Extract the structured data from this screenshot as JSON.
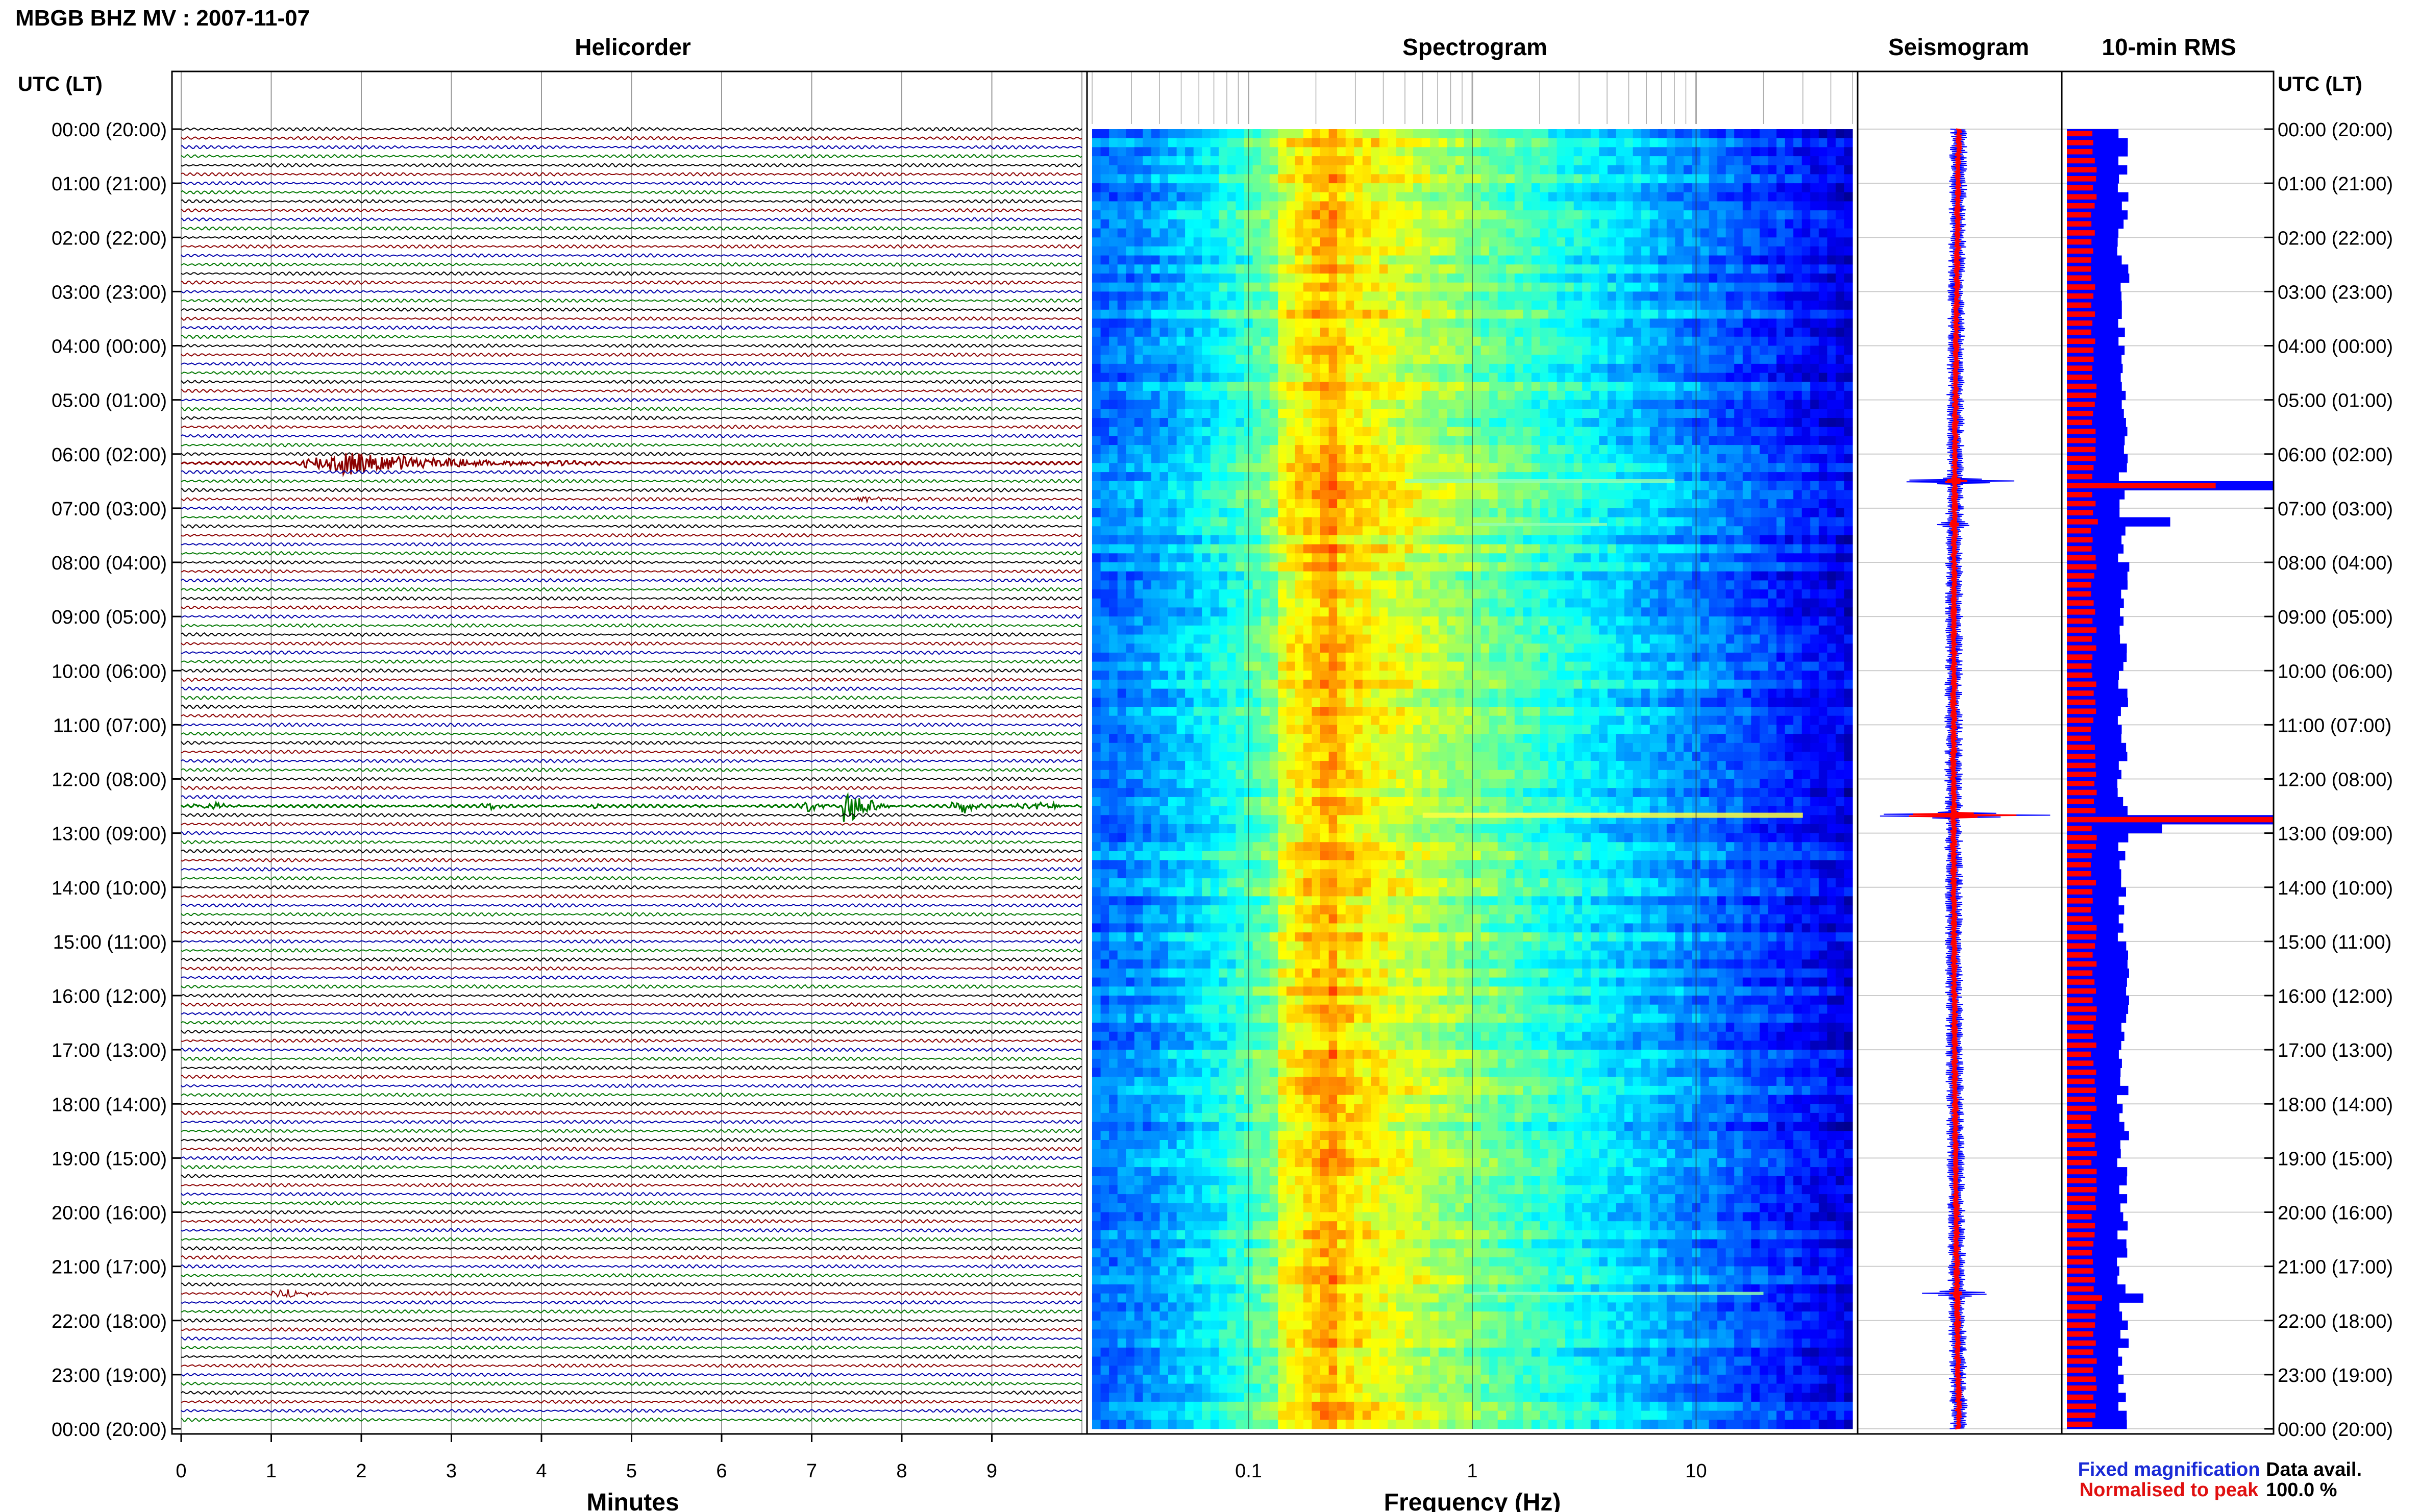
{
  "title": "MBGB BHZ MV : 2007-11-07",
  "panels": {
    "helicorder": "Helicorder",
    "spectrogram": "Spectrogram",
    "seismogram": "Seismogram",
    "rms": "10-min RMS"
  },
  "time_axis_label": "UTC (LT)",
  "time_labels": [
    "00:00 (20:00)",
    "01:00 (21:00)",
    "02:00 (22:00)",
    "03:00 (23:00)",
    "04:00 (00:00)",
    "05:00 (01:00)",
    "06:00 (02:00)",
    "07:00 (03:00)",
    "08:00 (04:00)",
    "09:00 (05:00)",
    "10:00 (06:00)",
    "11:00 (07:00)",
    "12:00 (08:00)",
    "13:00 (09:00)",
    "14:00 (10:00)",
    "15:00 (11:00)",
    "16:00 (12:00)",
    "17:00 (13:00)",
    "18:00 (14:00)",
    "19:00 (15:00)",
    "20:00 (16:00)",
    "21:00 (17:00)",
    "22:00 (18:00)",
    "23:00 (19:00)",
    "00:00 (20:00)"
  ],
  "minutes_axis": {
    "label": "Minutes",
    "ticks": [
      "0",
      "1",
      "2",
      "3",
      "4",
      "5",
      "6",
      "7",
      "8",
      "9"
    ]
  },
  "frequency_axis": {
    "label": "Frequency (Hz)",
    "ticks": [
      "0.1",
      "1",
      "10"
    ],
    "scale": "log"
  },
  "legend": {
    "fixed": "Fixed magnification",
    "normalised": "Normalised to peak",
    "fixed_color": "#1a2bd6",
    "normalised_color": "#e01010"
  },
  "data_avail": {
    "label": "Data avail.",
    "value": "100.0 %"
  },
  "colors": {
    "trace_cycle": [
      "#000000",
      "#8b0000",
      "#0000aa",
      "#007700"
    ],
    "rms_fixed": "#0000ff",
    "rms_norm": "#ff0000"
  },
  "chart_data": [
    {
      "type": "line",
      "name": "Helicorder",
      "x_unit": "minutes",
      "xlim": [
        0,
        10
      ],
      "rows_per_hour": 6,
      "row_minutes": 10,
      "events": [
        {
          "row": 37,
          "start_min": 1.2,
          "peak_min": 1.8,
          "end_min": 5.0,
          "amp": 1.4
        },
        {
          "row": 41,
          "start_min": 7.4,
          "peak_min": 7.6,
          "end_min": 9.0,
          "amp": 0.35
        },
        {
          "row": 75,
          "start_min": 0.0,
          "peak_min": 0.4,
          "end_min": 0.8,
          "amp": 0.35
        },
        {
          "row": 75,
          "start_min": 3.3,
          "peak_min": 3.45,
          "end_min": 3.8,
          "amp": 0.35
        },
        {
          "row": 75,
          "start_min": 6.8,
          "peak_min": 7.0,
          "end_min": 7.4,
          "amp": 0.6
        },
        {
          "row": 75,
          "start_min": 7.3,
          "peak_min": 7.4,
          "end_min": 7.9,
          "amp": 3.2
        },
        {
          "row": 75,
          "start_min": 8.5,
          "peak_min": 8.7,
          "end_min": 9.0,
          "amp": 0.9
        },
        {
          "row": 75,
          "start_min": 9.0,
          "peak_min": 9.7,
          "end_min": 10.0,
          "amp": 0.45
        },
        {
          "row": 75,
          "start_min": 4.5,
          "peak_min": 4.6,
          "end_min": 4.9,
          "amp": 0.2
        },
        {
          "row": 75,
          "start_min": 5.7,
          "peak_min": 5.75,
          "end_min": 5.9,
          "amp": 0.25
        },
        {
          "row": 113,
          "start_min": 8.2,
          "peak_min": 8.6,
          "end_min": 9.0,
          "amp": 0.15
        },
        {
          "row": 129,
          "start_min": 0.9,
          "peak_min": 1.2,
          "end_min": 2.0,
          "amp": 0.4
        }
      ]
    },
    {
      "type": "heatmap",
      "name": "Spectrogram",
      "x_unit": "Hz",
      "xscale": "log",
      "xlim": [
        0.02,
        50
      ],
      "y_unit": "hours",
      "ylim": [
        0,
        24
      ],
      "peak_band_hz": [
        0.18,
        0.35
      ],
      "event_lines": [
        {
          "hour": 6.5,
          "from_hz": 0.5,
          "to_hz": 8,
          "strength": 0.6
        },
        {
          "hour": 7.3,
          "from_hz": 1,
          "to_hz": 4,
          "strength": 0.3
        },
        {
          "hour": 12.67,
          "from_hz": 0.6,
          "to_hz": 30,
          "strength": 1.0
        },
        {
          "hour": 21.5,
          "from_hz": 1,
          "to_hz": 20,
          "strength": 0.35
        }
      ]
    },
    {
      "type": "line",
      "name": "Seismogram",
      "y_unit": "hours",
      "ylim": [
        0,
        24
      ],
      "spikes": [
        {
          "hour": 6.5,
          "fixed": 0.55,
          "norm": 0.1
        },
        {
          "hour": 7.3,
          "fixed": 0.1,
          "norm": 0.03
        },
        {
          "hour": 12.67,
          "fixed": 0.9,
          "norm": 0.6
        },
        {
          "hour": 21.5,
          "fixed": 0.3,
          "norm": 0.05
        }
      ]
    },
    {
      "type": "bar",
      "name": "10-min RMS",
      "y_unit": "hours",
      "ylim": [
        0,
        24
      ],
      "bins": 144,
      "baseline_fixed": 0.26,
      "baseline_norm": 0.13,
      "peaks": [
        {
          "bin": 39,
          "fixed": 1.0,
          "norm": 0.72
        },
        {
          "bin": 43,
          "fixed": 0.5,
          "norm": 0.15
        },
        {
          "bin": 76,
          "fixed": 1.0,
          "norm": 1.0
        },
        {
          "bin": 77,
          "fixed": 0.46,
          "norm": 0.12
        },
        {
          "bin": 129,
          "fixed": 0.37,
          "norm": 0.17
        }
      ]
    }
  ]
}
